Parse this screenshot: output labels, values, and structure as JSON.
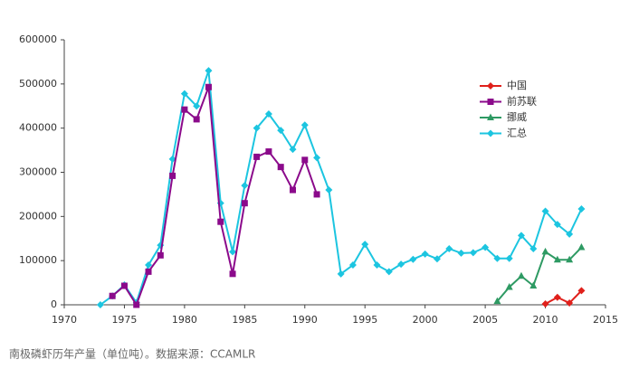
{
  "chart_data": {
    "type": "line",
    "caption": "南极磷虾历年产量（单位吨）。数据来源：CCAMLR",
    "xlim": [
      1970,
      2015
    ],
    "xticks": [
      1970,
      1975,
      1980,
      1985,
      1990,
      1995,
      2000,
      2005,
      2010,
      2015
    ],
    "ylim": [
      0,
      600000
    ],
    "yticks": [
      0,
      100000,
      200000,
      300000,
      400000,
      500000,
      600000
    ],
    "legend": "upper-right",
    "series": [
      {
        "name": "中国",
        "color": "#e0201b",
        "marker": "diamond",
        "x": [
          2010,
          2011,
          2012,
          2013
        ],
        "values": [
          2000,
          17000,
          4000,
          32000
        ]
      },
      {
        "name": "前苏联",
        "color": "#8b0a8b",
        "marker": "square",
        "x": [
          1974,
          1975,
          1976,
          1977,
          1978,
          1979,
          1980,
          1981,
          1982,
          1983,
          1984,
          1985,
          1986,
          1987,
          1988,
          1989,
          1990,
          1991
        ],
        "values": [
          20000,
          43000,
          0,
          75000,
          112000,
          292000,
          442000,
          420000,
          493000,
          188000,
          70000,
          230000,
          335000,
          347000,
          312000,
          260000,
          328000,
          250000
        ]
      },
      {
        "name": "挪威",
        "color": "#2e9a63",
        "marker": "triangle",
        "x": [
          2006,
          2007,
          2008,
          2009,
          2010,
          2011,
          2012,
          2013
        ],
        "values": [
          8000,
          40000,
          65000,
          43000,
          120000,
          102000,
          102000,
          130000
        ]
      },
      {
        "name": "汇总",
        "color": "#1cc5e0",
        "marker": "diamond",
        "x": [
          1973,
          1974,
          1975,
          1976,
          1977,
          1978,
          1979,
          1980,
          1981,
          1982,
          1983,
          1984,
          1985,
          1986,
          1987,
          1988,
          1989,
          1990,
          1991,
          1992,
          1993,
          1994,
          1995,
          1996,
          1997,
          1998,
          1999,
          2000,
          2001,
          2002,
          2003,
          2004,
          2005,
          2006,
          2007,
          2008,
          2009,
          2010,
          2011,
          2012,
          2013
        ],
        "values": [
          0,
          20000,
          45000,
          5000,
          90000,
          135000,
          330000,
          478000,
          450000,
          530000,
          230000,
          120000,
          270000,
          400000,
          432000,
          395000,
          352000,
          407000,
          333000,
          260000,
          70000,
          90000,
          137000,
          90000,
          75000,
          92000,
          103000,
          115000,
          104000,
          127000,
          117000,
          118000,
          130000,
          105000,
          105000,
          157000,
          127000,
          212000,
          182000,
          160000,
          217000
        ]
      }
    ]
  }
}
